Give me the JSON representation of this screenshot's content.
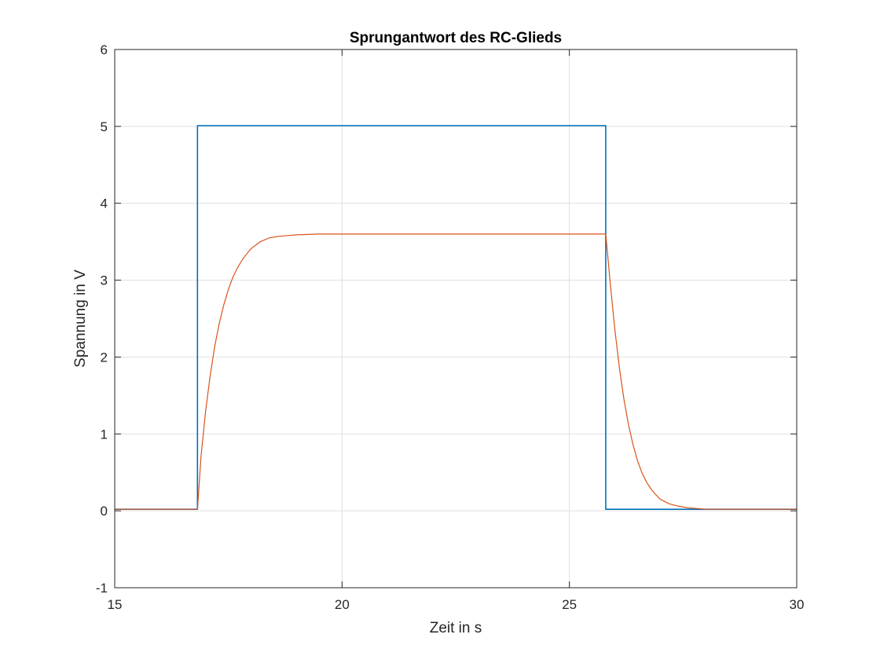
{
  "chart_data": {
    "type": "line",
    "title": "Sprungantwort des RC-Glieds",
    "xlabel": "Zeit in s",
    "ylabel": "Spannung in V",
    "xlim": [
      15,
      30
    ],
    "ylim": [
      -1,
      6
    ],
    "xticks": [
      15,
      20,
      25,
      30
    ],
    "yticks": [
      -1,
      0,
      1,
      2,
      3,
      4,
      5,
      6
    ],
    "grid": true,
    "legend": "none",
    "series": [
      {
        "color": "#0072BD",
        "x": [
          15,
          16.82,
          16.82,
          25.8,
          25.8,
          30
        ],
        "y": [
          0.02,
          0.02,
          5.01,
          5.01,
          0.02,
          0.02
        ]
      },
      {
        "color": "#D95319",
        "x": [
          15,
          16.82,
          16.9,
          17.0,
          17.1,
          17.2,
          17.3,
          17.4,
          17.5,
          17.6,
          17.7,
          17.8,
          17.9,
          18.0,
          18.2,
          18.4,
          18.6,
          18.8,
          19.0,
          19.5,
          20,
          22,
          24,
          25.8,
          25.9,
          26.0,
          26.1,
          26.2,
          26.3,
          26.4,
          26.5,
          26.6,
          26.7,
          26.8,
          26.9,
          27.0,
          27.2,
          27.4,
          27.6,
          27.8,
          28.0,
          28.5,
          29,
          30
        ],
        "y": [
          0.02,
          0.02,
          0.72,
          1.3,
          1.76,
          2.14,
          2.44,
          2.68,
          2.88,
          3.04,
          3.16,
          3.26,
          3.34,
          3.41,
          3.5,
          3.55,
          3.57,
          3.58,
          3.59,
          3.6,
          3.6,
          3.6,
          3.6,
          3.6,
          2.95,
          2.36,
          1.86,
          1.45,
          1.12,
          0.86,
          0.65,
          0.49,
          0.37,
          0.28,
          0.21,
          0.15,
          0.09,
          0.06,
          0.04,
          0.03,
          0.02,
          0.02,
          0.02,
          0.02
        ]
      }
    ]
  }
}
